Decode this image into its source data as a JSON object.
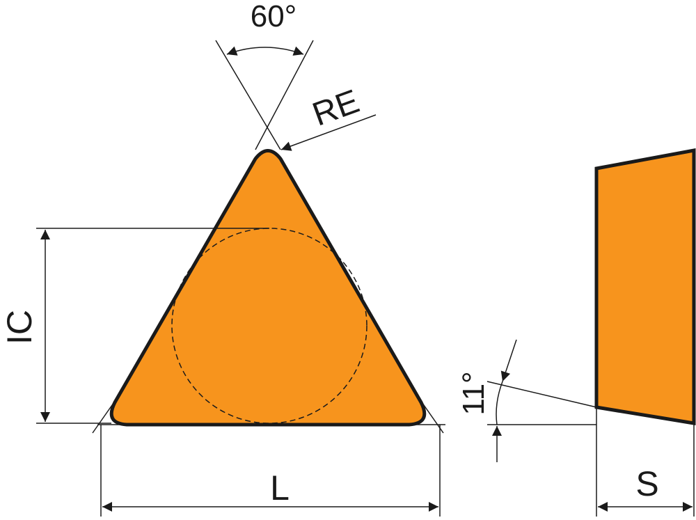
{
  "colors": {
    "fill": "#F7941D",
    "stroke": "#1a1a1a"
  },
  "labels": {
    "angle_top": "60°",
    "corner_radius": "RE",
    "inscribed_circle": "IC",
    "length": "L",
    "thickness": "S",
    "clearance_angle": "11°"
  }
}
